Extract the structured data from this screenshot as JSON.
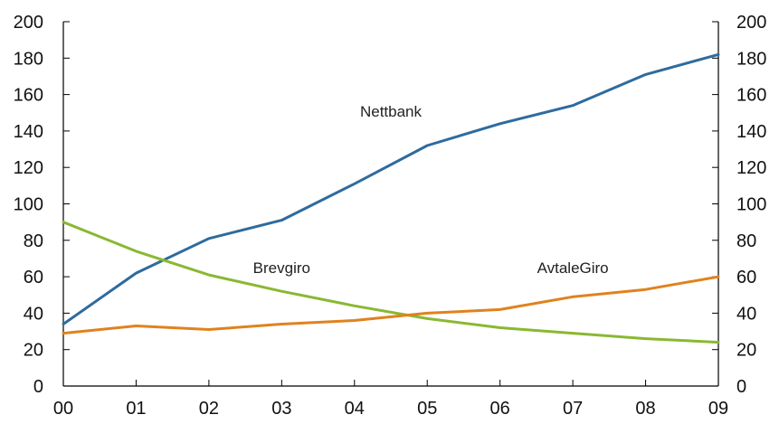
{
  "chart_data": {
    "type": "line",
    "title": "",
    "xlabel": "",
    "ylabel": "",
    "categories": [
      "00",
      "01",
      "02",
      "03",
      "04",
      "05",
      "06",
      "07",
      "08",
      "09"
    ],
    "ylim": [
      0,
      200
    ],
    "yticks": [
      "0",
      "20",
      "40",
      "60",
      "80",
      "100",
      "120",
      "140",
      "160",
      "180",
      "200"
    ],
    "grid": false,
    "legend": "none (series labeled directly on the plot)",
    "series": [
      {
        "name": "Nettbank",
        "color": "#2e6b9e",
        "values": [
          34,
          62,
          81,
          91,
          111,
          132,
          144,
          154,
          171,
          182
        ]
      },
      {
        "name": "Brevgiro",
        "color": "#8ab832",
        "values": [
          90,
          74,
          61,
          52,
          44,
          37,
          32,
          29,
          26,
          24
        ]
      },
      {
        "name": "AvtaleGiro",
        "color": "#e0821e",
        "values": [
          29,
          33,
          31,
          34,
          36,
          40,
          42,
          49,
          53,
          60
        ]
      }
    ],
    "axis_color": "#000000"
  }
}
